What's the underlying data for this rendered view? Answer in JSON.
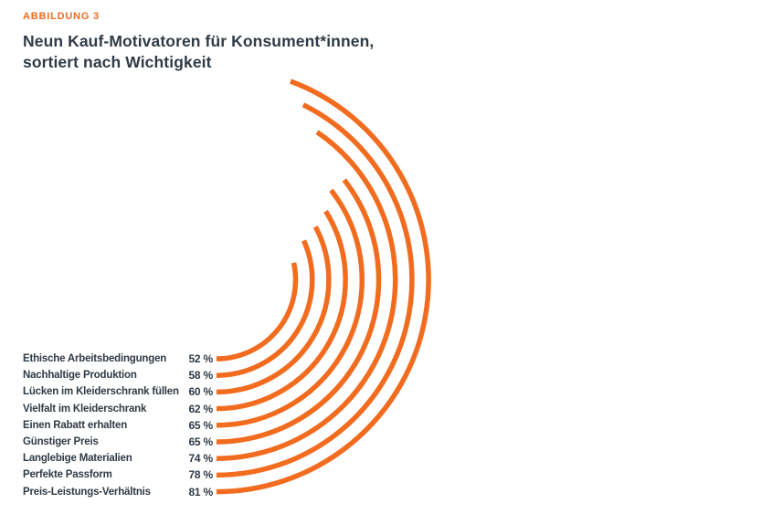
{
  "figure_label": "ABBILDUNG 3",
  "title_line1": "Neun Kauf-Motivatoren für Konsument*innen,",
  "title_line2": "sortiert nach Wichtigkeit",
  "colors": {
    "accent_orange": "#F26C1F",
    "text_dark": "#2F3B46",
    "background": "#FFFFFF"
  },
  "chart_data": {
    "type": "radial-bar",
    "title": "Neun Kauf-Motivatoren für Konsument*innen, sortiert nach Wichtigkeit",
    "unit": "%",
    "sorted": "ascending by importance, innermost arc = smallest value",
    "legend_position": "left, one row per arc start",
    "categories": [
      "Ethische Arbeitsbedingungen",
      "Nachhaltige Produktion",
      "Lücken im Kleiderschrank füllen",
      "Vielfalt im Kleiderschrank",
      "Einen Rabatt erhalten",
      "Günstiger Preis",
      "Langlebige Materialien",
      "Perfekte Passform",
      "Preis-Leistungs-Verhältnis"
    ],
    "values": [
      52,
      58,
      60,
      62,
      65,
      65,
      74,
      78,
      81
    ],
    "value_labels": [
      "52 %",
      "58 %",
      "60 %",
      "62 %",
      "65 %",
      "65 %",
      "74 %",
      "78 %",
      "81 %"
    ]
  }
}
